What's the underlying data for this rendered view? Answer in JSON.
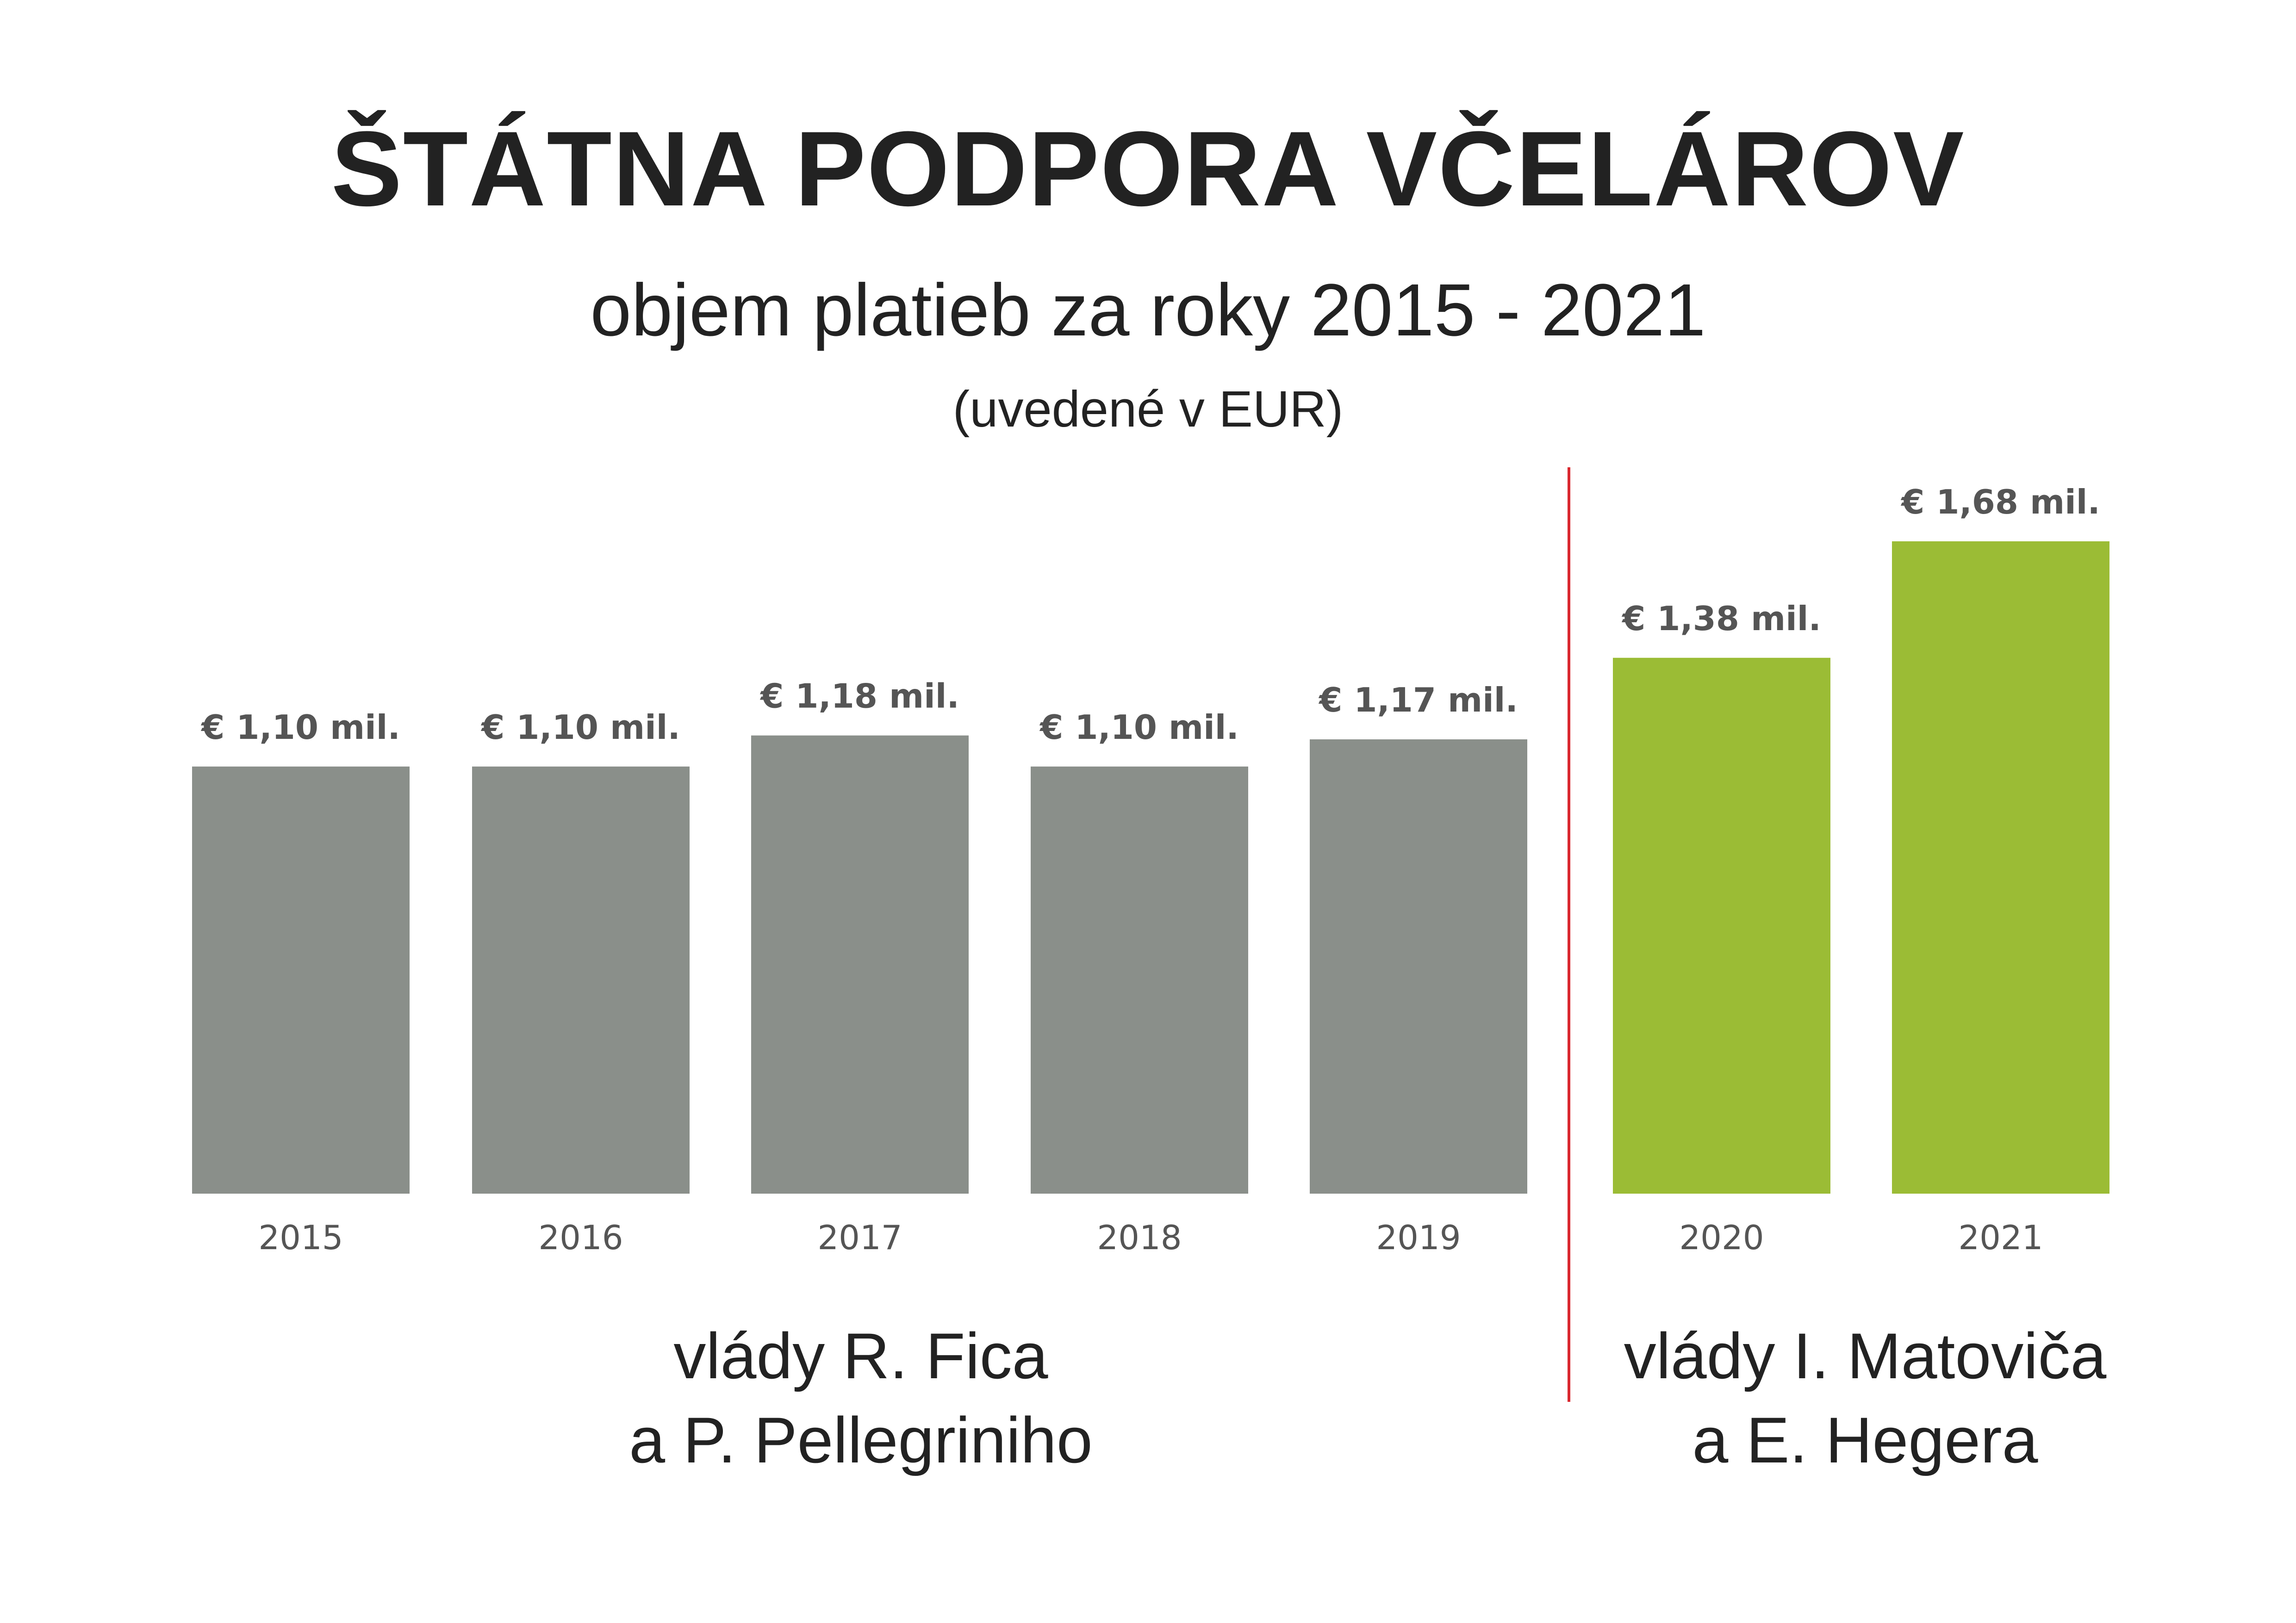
{
  "header": {
    "title": "ŠTÁTNA PODPORA VČELÁROV",
    "subtitle": "objem platieb za roky 2015 - 2021",
    "unit_note": "(uvedené v EUR)"
  },
  "groups": [
    {
      "line1": "vlády R. Fica",
      "line2": "a P. Pellegriniho"
    },
    {
      "line1": "vlády I. Matoviča",
      "line2": "a E. Hegera"
    }
  ],
  "colors": {
    "bar_group1": "#8a8f8a",
    "bar_group2": "#9bbc35",
    "divider": "#d9282f",
    "text": "#222222"
  },
  "chart_data": {
    "type": "bar",
    "title": "ŠTÁTNA PODPORA VČELÁROV",
    "xlabel": "",
    "ylabel": "",
    "categories": [
      "2015",
      "2016",
      "2017",
      "2018",
      "2019",
      "2020",
      "2021"
    ],
    "values": [
      1.1,
      1.1,
      1.18,
      1.1,
      1.17,
      1.38,
      1.68
    ],
    "value_labels": [
      "€ 1,10 mil.",
      "€ 1,10 mil.",
      "€ 1,18 mil.",
      "€ 1,10 mil.",
      "€ 1,17 mil.",
      "€ 1,38 mil.",
      "€ 1,68 mil."
    ],
    "series_group": [
      0,
      0,
      0,
      0,
      0,
      1,
      1
    ],
    "ylim": [
      0,
      1.68
    ],
    "grid": false,
    "legend": "none"
  }
}
